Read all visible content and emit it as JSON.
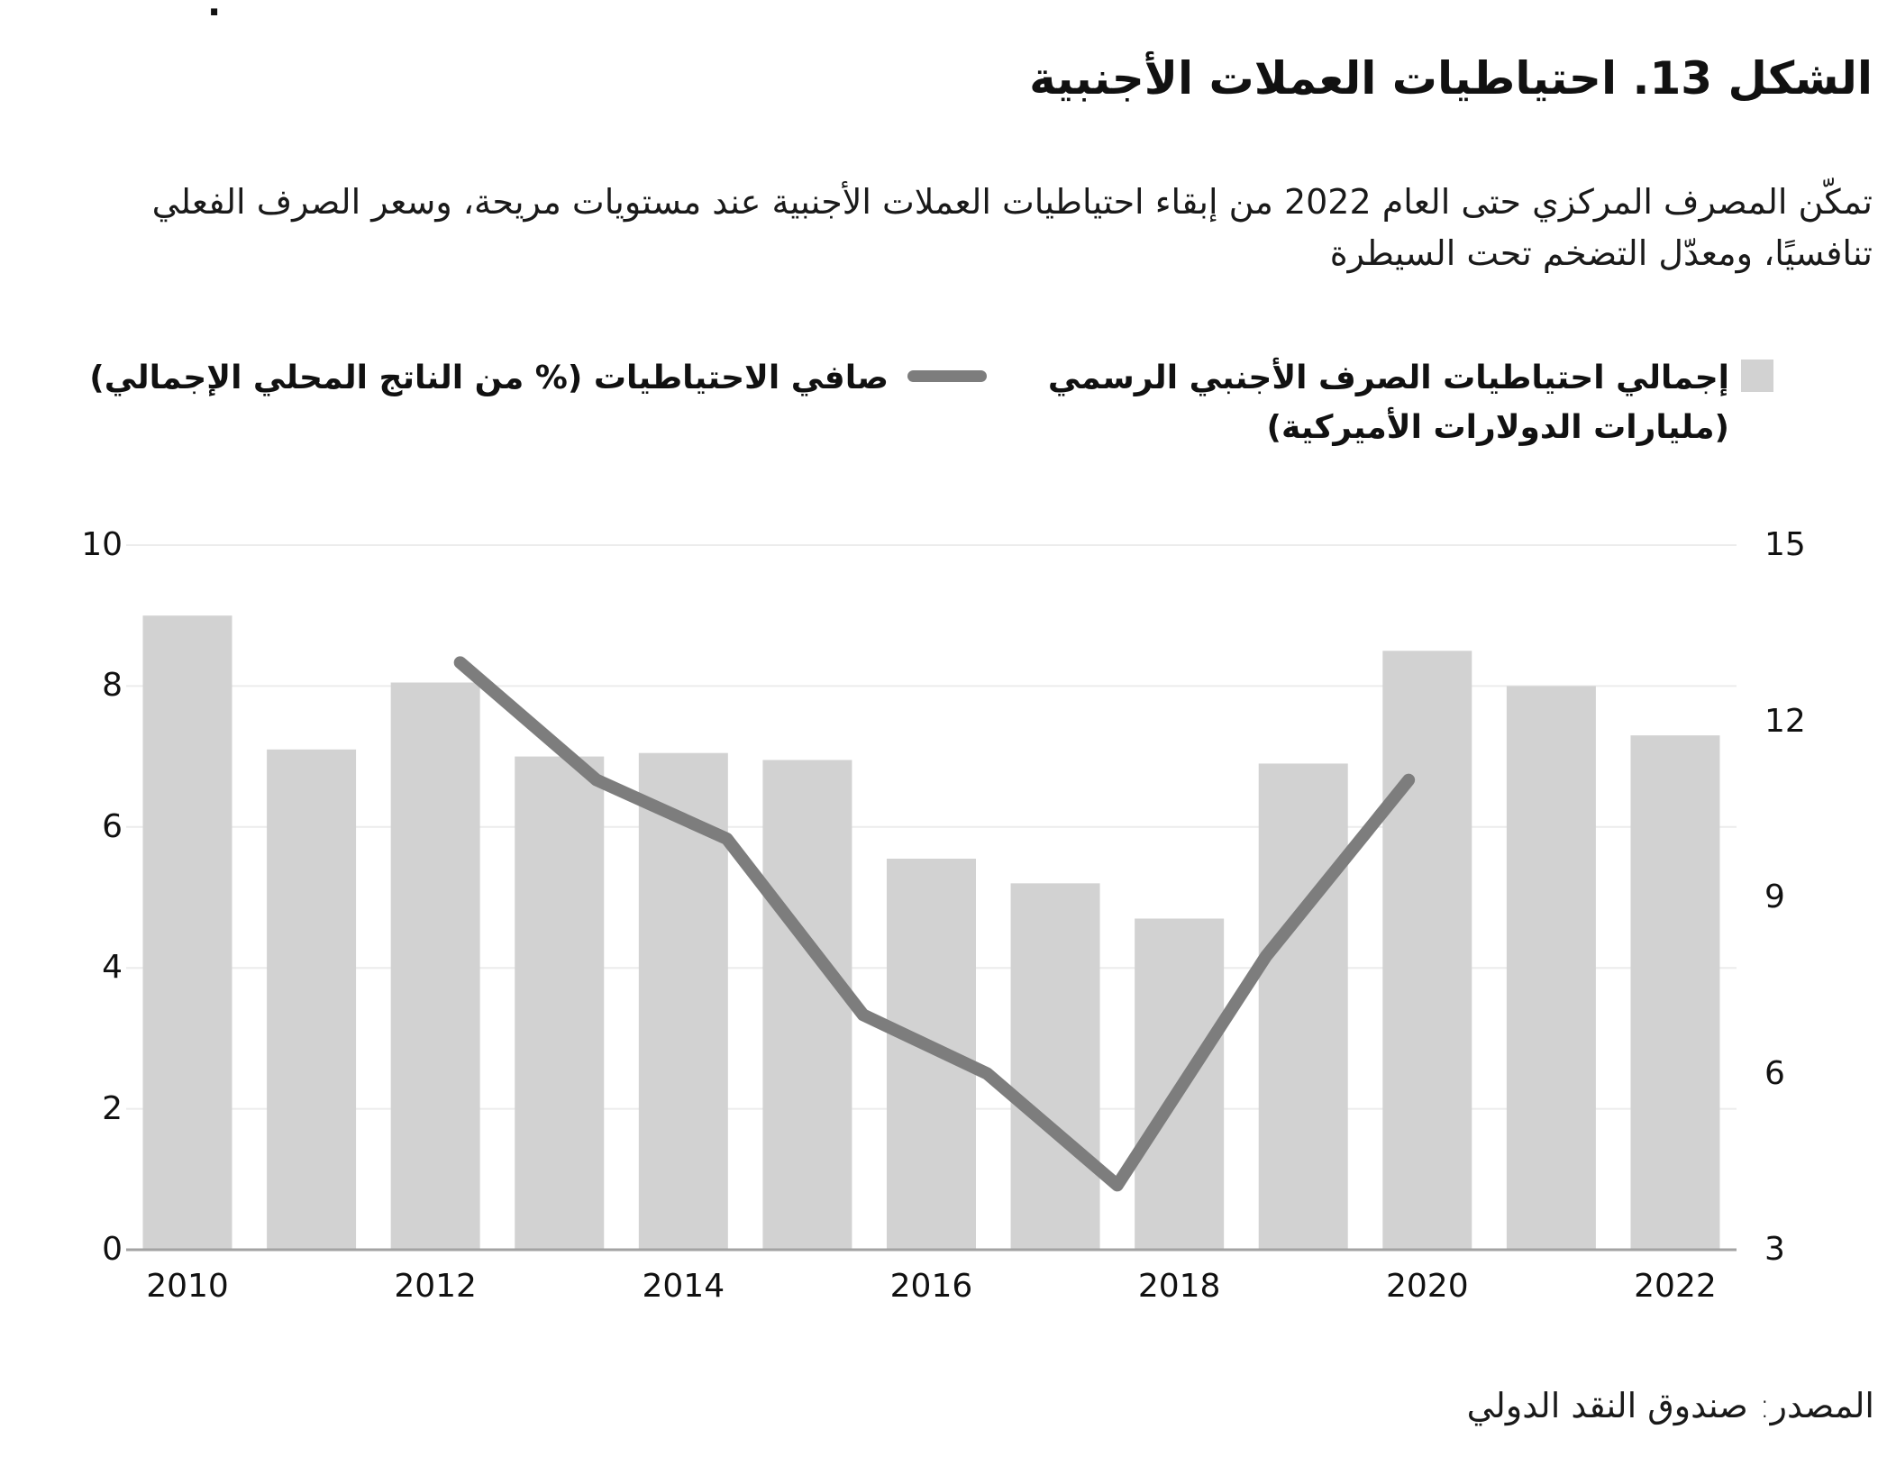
{
  "page": {
    "stray_dot": ".",
    "title": "الشكل 13. احتياطيات العملات الأجنبية",
    "subtitle": "تمكّن المصرف المركزي حتى العام 2022 من إبقاء احتياطيات العملات الأجنبية عند مستويات مريحة، وسعر الصرف الفعلي تنافسيًا، ومعدّل التضخم تحت السيطرة",
    "source": "المصدر: صندوق النقد الدولي"
  },
  "legend": {
    "bars": {
      "label_line1": "إجمالي احتياطيات الصرف الأجنبي الرسمي",
      "label_line2": "(مليارات الدولارات الأميركية)",
      "swatch_color": "#d2d2d2"
    },
    "line": {
      "label": "صافي الاحتياطيات (% من الناتج المحلي الإجمالي)",
      "swatch_color": "#7d7d7d"
    }
  },
  "colors": {
    "bar": "#d2d2d2",
    "line": "#7d7d7d",
    "grid": "#ececec",
    "axis_line": "#a3a3a3",
    "text": "#111111",
    "background": "#ffffff"
  },
  "chart_data": {
    "type": "bar+line",
    "title": "الشكل 13. احتياطيات العملات الأجنبية",
    "categories": [
      2010,
      2011,
      2012,
      2013,
      2014,
      2015,
      2016,
      2017,
      2018,
      2019,
      2020,
      2021,
      2022
    ],
    "series": [
      {
        "name": "إجمالي احتياطيات الصرف الأجنبي الرسمي (مليارات الدولارات الأميركية)",
        "type": "bar",
        "axis": "left",
        "color": "#d2d2d2",
        "values": [
          9.0,
          7.1,
          8.05,
          7.0,
          7.05,
          6.95,
          5.55,
          5.2,
          4.7,
          6.9,
          8.5,
          8.0,
          7.3
        ]
      },
      {
        "name": "صافي الاحتياطيات (% من الناتج المحلي الإجمالي)",
        "type": "line",
        "axis": "right",
        "color": "#7d7d7d",
        "years": [
          2012,
          2013,
          2014,
          2015,
          2016,
          2017,
          2018,
          2019
        ],
        "values": [
          13,
          11,
          10,
          7,
          6,
          4.1,
          8,
          11
        ],
        "x_plot": [
          2012.2,
          2013.3,
          2014.35,
          2015.45,
          2016.45,
          2017.5,
          2018.7,
          2019.85
        ]
      }
    ],
    "left_axis": {
      "range": [
        0,
        10
      ],
      "ticks": [
        0,
        2,
        4,
        6,
        8,
        10
      ]
    },
    "right_axis": {
      "range": [
        3,
        15
      ],
      "ticks": [
        3,
        6,
        9,
        12,
        15
      ]
    },
    "x_ticks": [
      2010,
      2012,
      2014,
      2016,
      2018,
      2020,
      2022
    ],
    "grid": "horizontal",
    "legend_position": "top"
  }
}
